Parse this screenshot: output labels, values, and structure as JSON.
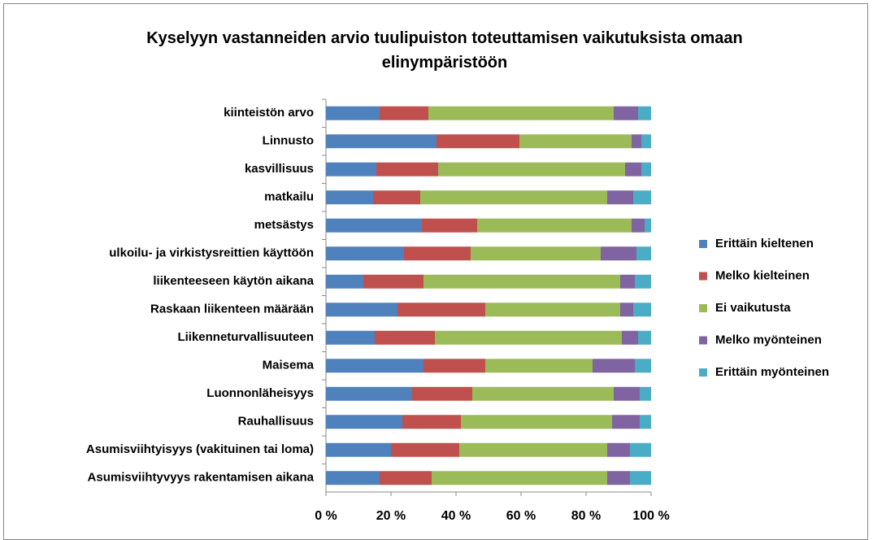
{
  "chart_data": {
    "type": "stacked_barh",
    "title": "Kyselyyn vastanneiden arvio tuulipuiston toteuttamisen vaikutuksista omaan elinympäristöön",
    "categories": [
      "kiinteistön arvo",
      "Linnusto",
      "kasvillisuus",
      "matkailu",
      "metsästys",
      "ulkoilu- ja virkistysreittien käyttöön",
      "liikenteeseen käytön aikana",
      "Raskaan liikenteen määrään",
      "Liikenneturvallisuuteen",
      "Maisema",
      "Luonnonläheisyys",
      "Rauhallisuus",
      "Asumisviihtyisyys (vakituinen tai loma)",
      "Asumisviihtyvyys rakentamisen aikana"
    ],
    "series": [
      {
        "name": "Erittäin kieltenen",
        "color": "#4f81bd",
        "values": [
          16.5,
          34,
          15.5,
          14.5,
          29.5,
          24,
          11.5,
          22,
          15,
          30,
          26.5,
          23.5,
          20,
          16.5
        ]
      },
      {
        "name": "Melko kielteinen",
        "color": "#c0504d",
        "values": [
          15,
          25.5,
          19,
          14.5,
          17,
          20.5,
          18.5,
          27,
          18.5,
          19,
          18.5,
          18,
          21,
          16
        ]
      },
      {
        "name": "Ei vaikutusta",
        "color": "#9bbb59",
        "values": [
          57,
          34.5,
          57.5,
          57.5,
          47.5,
          40,
          60.5,
          41.5,
          57.5,
          33,
          43.5,
          46.5,
          45.5,
          54
        ]
      },
      {
        "name": "Melko myönteinen",
        "color": "#8064a2",
        "values": [
          7.5,
          3,
          5,
          8,
          4,
          11,
          4.5,
          4,
          5,
          13,
          8,
          8.5,
          7,
          7
        ]
      },
      {
        "name": "Erittäin myönteinen",
        "color": "#4bacc6",
        "values": [
          4,
          3,
          3,
          5.5,
          2,
          4.5,
          5,
          5.5,
          4,
          5,
          3.5,
          3.5,
          6.5,
          6.5
        ]
      }
    ],
    "xlim": [
      0,
      100
    ],
    "xticks": [
      {
        "value": 0,
        "label": "0 %"
      },
      {
        "value": 20,
        "label": "20 %"
      },
      {
        "value": 40,
        "label": "40 %"
      },
      {
        "value": 60,
        "label": "60 %"
      },
      {
        "value": 80,
        "label": "80 %"
      },
      {
        "value": 100,
        "label": "100 %"
      }
    ],
    "legend": "right"
  }
}
